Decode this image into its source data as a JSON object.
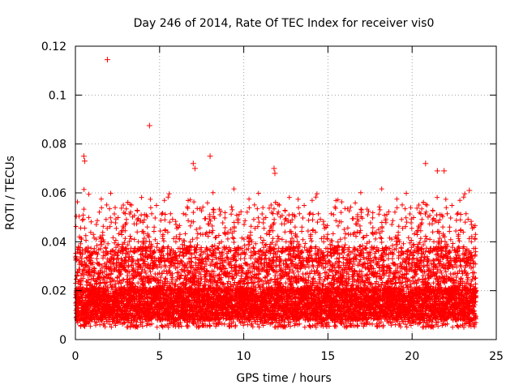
{
  "chart_data": {
    "type": "scatter",
    "title": "Day 246 of 2014, Rate Of TEC Index for receiver vis0",
    "xlabel": "GPS time / hours",
    "ylabel": "ROTI / TECUs",
    "xlim": [
      0,
      25
    ],
    "ylim": [
      0,
      0.12
    ],
    "xticks": [
      0,
      5,
      10,
      15,
      20,
      25
    ],
    "xtick_labels": [
      "0",
      "5",
      "10",
      "15",
      "20",
      "25"
    ],
    "yticks": [
      0,
      0.02,
      0.04,
      0.06,
      0.08,
      0.1,
      0.12
    ],
    "ytick_labels": [
      "0",
      "0.02",
      "0.04",
      "0.06",
      "0.08",
      "0.1",
      "0.12"
    ],
    "grid": true,
    "marker": "plus",
    "color": "#ff0000",
    "series": [
      {
        "name": "ROTI",
        "x_range": [
          0,
          23.8
        ],
        "typical_band": [
          0.005,
          0.05
        ],
        "outliers": [
          {
            "x": 1.9,
            "y": 0.1145
          },
          {
            "x": 4.4,
            "y": 0.0875
          },
          {
            "x": 0.5,
            "y": 0.075
          },
          {
            "x": 0.55,
            "y": 0.073
          },
          {
            "x": 7.0,
            "y": 0.072
          },
          {
            "x": 7.1,
            "y": 0.07
          },
          {
            "x": 8.0,
            "y": 0.075
          },
          {
            "x": 11.8,
            "y": 0.07
          },
          {
            "x": 11.85,
            "y": 0.068
          },
          {
            "x": 20.8,
            "y": 0.072
          },
          {
            "x": 21.5,
            "y": 0.069
          },
          {
            "x": 21.9,
            "y": 0.069
          },
          {
            "x": 23.4,
            "y": 0.061
          }
        ]
      }
    ]
  }
}
